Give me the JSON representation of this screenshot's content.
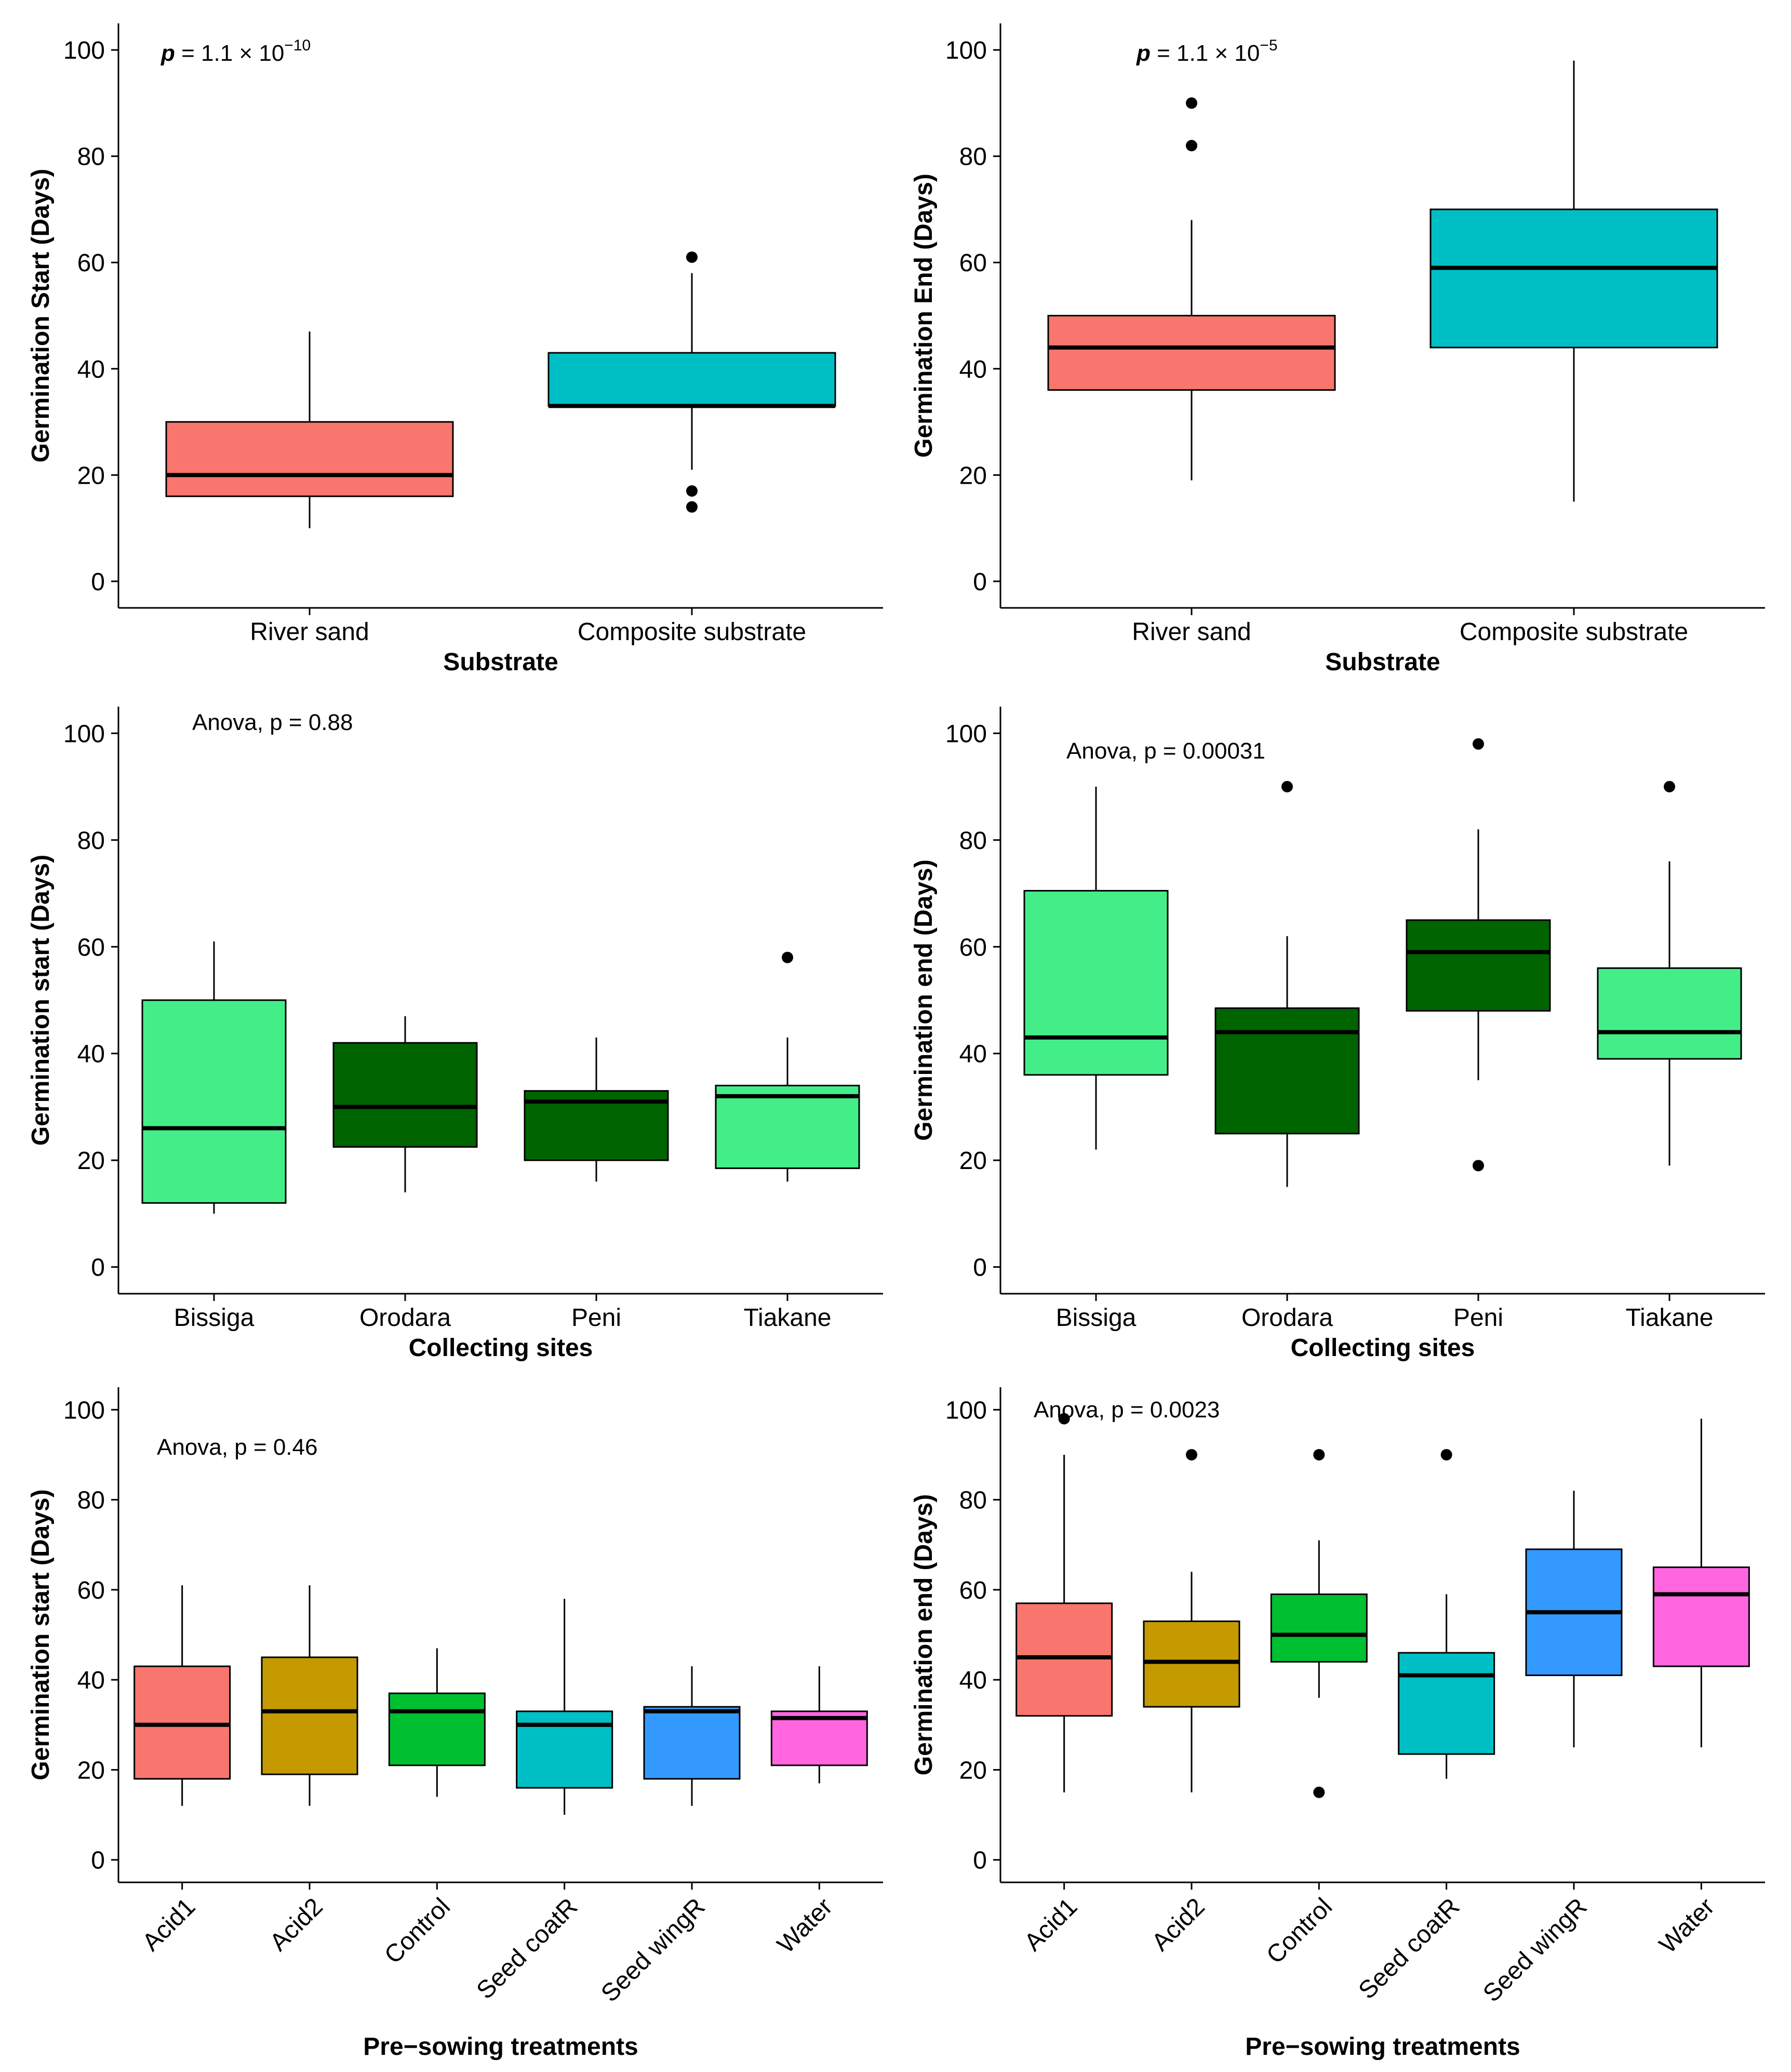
{
  "figure": {
    "panels": 6,
    "layout": "3 rows x 2 columns"
  },
  "chart_data": [
    {
      "type": "boxplot",
      "xlabel": "Substrate",
      "ylabel": "Germination Start (Days)",
      "ylim": [
        -5,
        105
      ],
      "yticks": [
        0,
        20,
        40,
        60,
        80,
        100
      ],
      "annotation": {
        "prefix": "p",
        "text": " = 1.1 × 10",
        "exp": "−10",
        "position": "top-left"
      },
      "x_label_rotated": false,
      "categories": [
        {
          "label": "River sand",
          "color": "#F8766D",
          "q1": 16,
          "median": 20,
          "q3": 30,
          "whisker_low": 10,
          "whisker_high": 47,
          "outliers": []
        },
        {
          "label": "Composite substrate",
          "color": "#00BFC4",
          "q1": 33,
          "median": 33,
          "q3": 43,
          "whisker_low": 21,
          "whisker_high": 58,
          "outliers": [
            61,
            17,
            14
          ]
        }
      ]
    },
    {
      "type": "boxplot",
      "xlabel": "Substrate",
      "ylabel": "Germination End (Days)",
      "ylim": [
        -5,
        105
      ],
      "yticks": [
        0,
        20,
        40,
        60,
        80,
        100
      ],
      "annotation": {
        "prefix": "p",
        "text": " = 1.1 × 10",
        "exp": "−5",
        "position": "top-left"
      },
      "x_label_rotated": false,
      "categories": [
        {
          "label": "River sand",
          "color": "#F8766D",
          "q1": 36,
          "median": 44,
          "q3": 50,
          "whisker_low": 19,
          "whisker_high": 68,
          "outliers": [
            90,
            82
          ]
        },
        {
          "label": "Composite substrate",
          "color": "#00BFC4",
          "q1": 44,
          "median": 59,
          "q3": 70,
          "whisker_low": 15,
          "whisker_high": 98,
          "outliers": []
        }
      ]
    },
    {
      "type": "boxplot",
      "xlabel": "Collecting sites",
      "ylabel": "Germination start (Days)",
      "ylim": [
        -5,
        105
      ],
      "yticks": [
        0,
        20,
        40,
        60,
        80,
        100
      ],
      "annotation": {
        "prefix": "",
        "text": "Anova, p = 0.88",
        "exp": "",
        "position": "top-left"
      },
      "x_label_rotated": false,
      "categories": [
        {
          "label": "Bissiga",
          "color": "#43EE88",
          "q1": 12,
          "median": 26,
          "q3": 50,
          "whisker_low": 10,
          "whisker_high": 61,
          "outliers": []
        },
        {
          "label": "Orodara",
          "color": "#006400",
          "q1": 22.5,
          "median": 30,
          "q3": 42,
          "whisker_low": 14,
          "whisker_high": 47,
          "outliers": []
        },
        {
          "label": "Peni",
          "color": "#006400",
          "q1": 20,
          "median": 31,
          "q3": 33,
          "whisker_low": 16,
          "whisker_high": 43,
          "outliers": []
        },
        {
          "label": "Tiakane",
          "color": "#43EE88",
          "q1": 18.5,
          "median": 32,
          "q3": 34,
          "whisker_low": 16,
          "whisker_high": 43,
          "outliers": [
            58
          ]
        }
      ]
    },
    {
      "type": "boxplot",
      "xlabel": "Collecting sites",
      "ylabel": "Germination end (Days)",
      "ylim": [
        -5,
        105
      ],
      "yticks": [
        0,
        20,
        40,
        60,
        80,
        100
      ],
      "annotation": {
        "prefix": "",
        "text": "Anova, p = 0.00031",
        "exp": "",
        "position": "top-left"
      },
      "x_label_rotated": false,
      "categories": [
        {
          "label": "Bissiga",
          "color": "#43EE88",
          "q1": 36,
          "median": 43,
          "q3": 70.5,
          "whisker_low": 22,
          "whisker_high": 90,
          "outliers": []
        },
        {
          "label": "Orodara",
          "color": "#006400",
          "q1": 25,
          "median": 44,
          "q3": 48.5,
          "whisker_low": 15,
          "whisker_high": 62,
          "outliers": [
            90
          ]
        },
        {
          "label": "Peni",
          "color": "#006400",
          "q1": 48,
          "median": 59,
          "q3": 65,
          "whisker_low": 35,
          "whisker_high": 82,
          "outliers": [
            98,
            19
          ]
        },
        {
          "label": "Tiakane",
          "color": "#43EE88",
          "q1": 39,
          "median": 44,
          "q3": 56,
          "whisker_low": 19,
          "whisker_high": 76,
          "outliers": [
            90
          ]
        }
      ]
    },
    {
      "type": "boxplot",
      "xlabel": "Pre−sowing treatments",
      "ylabel": "Germination start (Days)",
      "ylim": [
        -5,
        105
      ],
      "yticks": [
        0,
        20,
        40,
        60,
        80,
        100
      ],
      "annotation": {
        "prefix": "",
        "text": "Anova, p = 0.46",
        "exp": "",
        "position": "top-left"
      },
      "x_label_rotated": true,
      "categories": [
        {
          "label": "Acid1",
          "color": "#F8766D",
          "q1": 18,
          "median": 30,
          "q3": 43,
          "whisker_low": 12,
          "whisker_high": 61,
          "outliers": []
        },
        {
          "label": "Acid2",
          "color": "#C49A00",
          "q1": 19,
          "median": 33,
          "q3": 45,
          "whisker_low": 12,
          "whisker_high": 61,
          "outliers": []
        },
        {
          "label": "Control",
          "color": "#00C031",
          "q1": 21,
          "median": 33,
          "q3": 37,
          "whisker_low": 14,
          "whisker_high": 47,
          "outliers": []
        },
        {
          "label": "Seed coatR",
          "color": "#00BFC4",
          "q1": 16,
          "median": 30,
          "q3": 33,
          "whisker_low": 10,
          "whisker_high": 58,
          "outliers": []
        },
        {
          "label": "Seed wingR",
          "color": "#3399FF",
          "q1": 18,
          "median": 33,
          "q3": 34,
          "whisker_low": 12,
          "whisker_high": 43,
          "outliers": []
        },
        {
          "label": "Water",
          "color": "#FF66E0",
          "q1": 21,
          "median": 31.5,
          "q3": 33,
          "whisker_low": 17,
          "whisker_high": 43,
          "outliers": []
        }
      ]
    },
    {
      "type": "boxplot",
      "xlabel": "Pre−sowing treatments",
      "ylabel": "Germination end (Days)",
      "ylim": [
        -5,
        105
      ],
      "yticks": [
        0,
        20,
        40,
        60,
        80,
        100
      ],
      "annotation": {
        "prefix": "",
        "text": "Anova, p = 0.0023",
        "exp": "",
        "position": "top-left"
      },
      "x_label_rotated": true,
      "categories": [
        {
          "label": "Acid1",
          "color": "#F8766D",
          "q1": 32,
          "median": 45,
          "q3": 57,
          "whisker_low": 15,
          "whisker_high": 90,
          "outliers": [
            98
          ]
        },
        {
          "label": "Acid2",
          "color": "#C49A00",
          "q1": 34,
          "median": 44,
          "q3": 53,
          "whisker_low": 15,
          "whisker_high": 64,
          "outliers": [
            90
          ]
        },
        {
          "label": "Control",
          "color": "#00C031",
          "q1": 44,
          "median": 50,
          "q3": 59,
          "whisker_low": 36,
          "whisker_high": 71,
          "outliers": [
            90,
            15
          ]
        },
        {
          "label": "Seed coatR",
          "color": "#00BFC4",
          "q1": 23.5,
          "median": 41,
          "q3": 46,
          "whisker_low": 18,
          "whisker_high": 59,
          "outliers": [
            90
          ]
        },
        {
          "label": "Seed wingR",
          "color": "#3399FF",
          "q1": 41,
          "median": 55,
          "q3": 69,
          "whisker_low": 25,
          "whisker_high": 82,
          "outliers": []
        },
        {
          "label": "Water",
          "color": "#FF66E0",
          "q1": 43,
          "median": 59,
          "q3": 65,
          "whisker_low": 25,
          "whisker_high": 98,
          "outliers": []
        }
      ]
    }
  ]
}
